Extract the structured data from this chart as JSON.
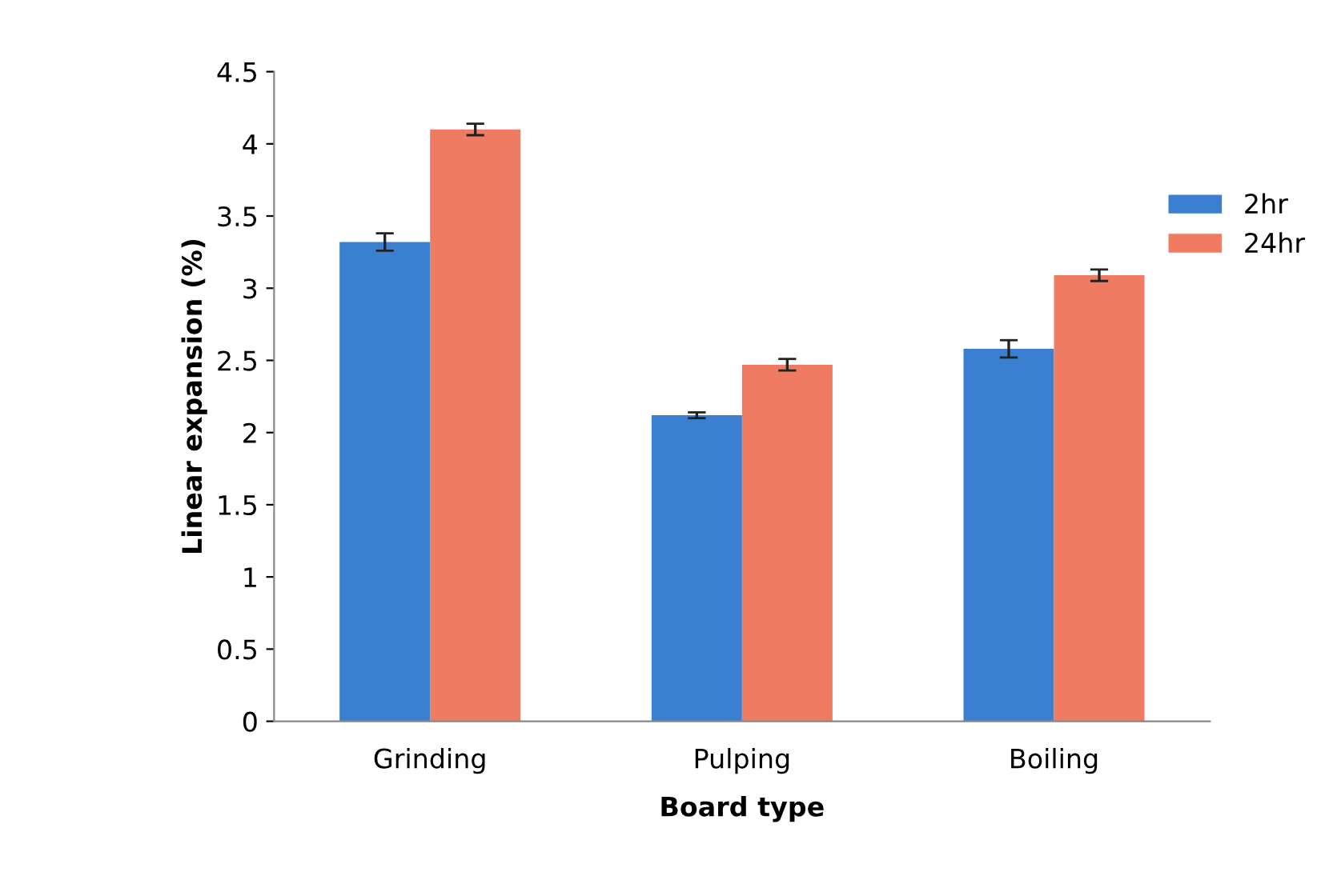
{
  "chart_data": {
    "type": "bar",
    "xlabel": "Board type",
    "ylabel": "Linear expansion (%)",
    "categories": [
      "Grinding",
      "Pulping",
      "Boiling"
    ],
    "series": [
      {
        "name": "2hr",
        "color": "#3a7fd0",
        "values": [
          3.32,
          2.12,
          2.58
        ],
        "errors": [
          0.06,
          0.02,
          0.06
        ]
      },
      {
        "name": "24hr",
        "color": "#f07b63",
        "values": [
          4.1,
          2.47,
          3.09
        ],
        "errors": [
          0.04,
          0.04,
          0.04
        ]
      }
    ],
    "ylim": [
      0,
      4.5
    ],
    "yticks": [
      0,
      0.5,
      1,
      1.5,
      2,
      2.5,
      3,
      3.5,
      4,
      4.5
    ],
    "grid": false,
    "legend": "right"
  }
}
